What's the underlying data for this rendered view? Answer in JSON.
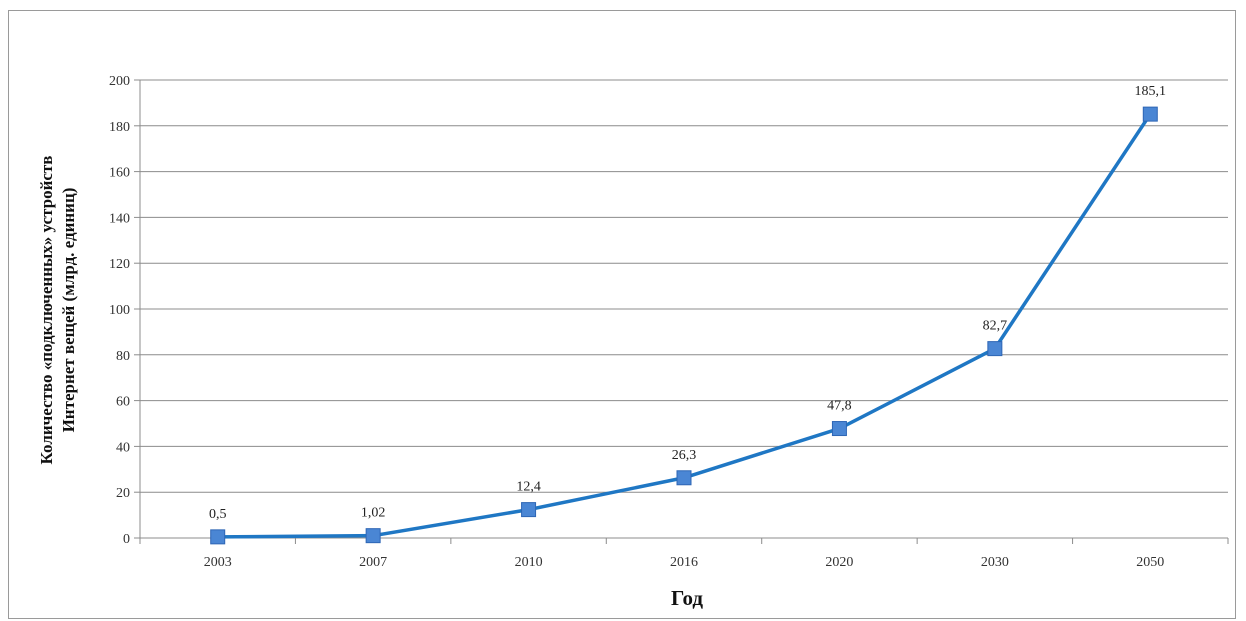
{
  "chart_data": {
    "type": "line",
    "categories": [
      "2003",
      "2007",
      "2010",
      "2016",
      "2020",
      "2030",
      "2050"
    ],
    "series": [
      {
        "values": [
          0.5,
          1.02,
          12.4,
          26.3,
          47.8,
          82.7,
          185.1
        ],
        "data_labels": [
          "0,5",
          "1,02",
          "12,4",
          "26,3",
          "47,8",
          "82,7",
          "185,1"
        ],
        "color": "#1f77c4",
        "marker_color": "#4a86d4"
      }
    ],
    "title": "",
    "xlabel": "Год",
    "ylabel_line1": "Количество «подключенных» устройств",
    "ylabel_line2": "Интернет вещей (млрд. единиц)",
    "ylim": [
      0,
      200
    ],
    "yticks": [
      "0",
      "20",
      "40",
      "60",
      "80",
      "100",
      "120",
      "140",
      "160",
      "180",
      "200"
    ],
    "grid": true,
    "legend": "none"
  }
}
